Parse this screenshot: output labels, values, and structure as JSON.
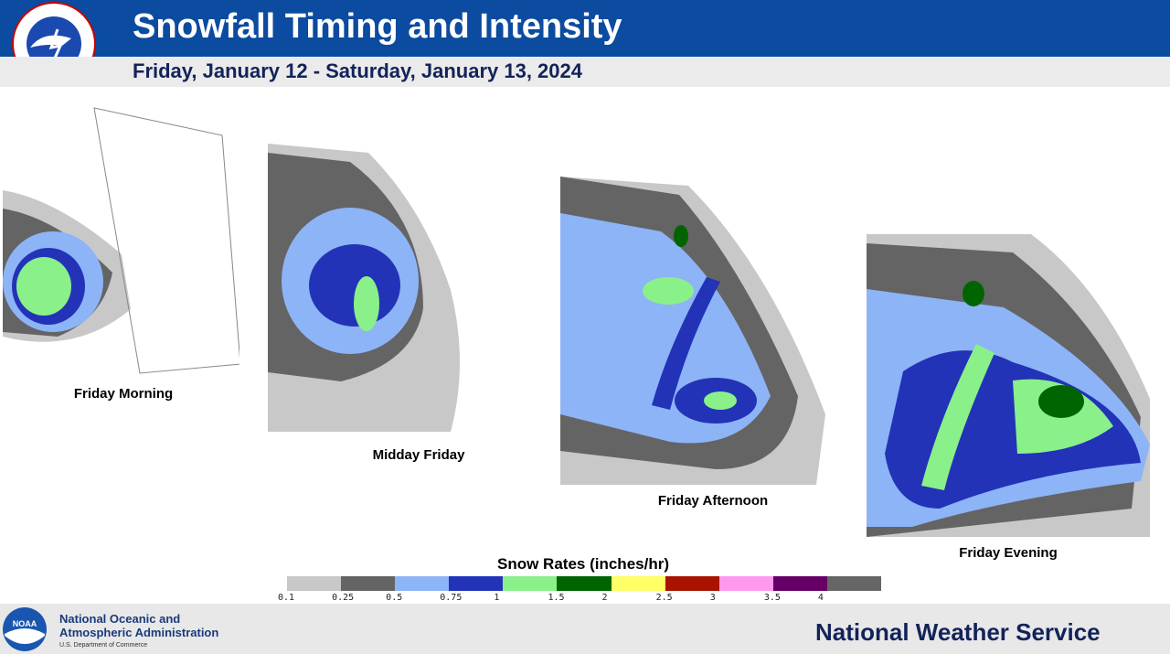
{
  "header": {
    "title": "Snowfall Timing and Intensity",
    "subtitle": "Friday, January 12 - Saturday, January 13, 2024"
  },
  "panels": [
    {
      "label": "Friday Morning"
    },
    {
      "label": "Midday Friday"
    },
    {
      "label": "Friday Afternoon"
    },
    {
      "label": "Friday Evening"
    }
  ],
  "legend": {
    "title": "Snow Rates (inches/hr)",
    "levels": [
      0.1,
      0.25,
      0.5,
      0.75,
      1,
      1.5,
      2,
      2.5,
      3,
      3.5,
      4
    ],
    "colors": [
      "#c8c8c8",
      "#646464",
      "#8db4f6",
      "#2233b8",
      "#8af08a",
      "#006400",
      "#ffff66",
      "#a81400",
      "#ff99ee",
      "#660066",
      "#666666"
    ]
  },
  "footer": {
    "agency_line1": "National Oceanic and",
    "agency_line2": "Atmospheric Administration",
    "department": "U.S. Department of Commerce",
    "service": "National Weather Service"
  }
}
